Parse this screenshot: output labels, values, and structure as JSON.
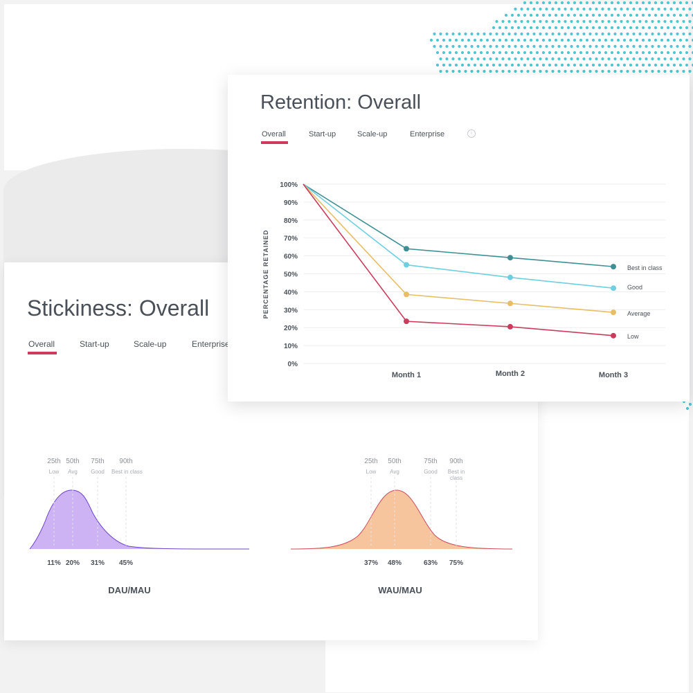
{
  "stickiness": {
    "title": "Stickiness: Overall",
    "tabs": [
      {
        "label": "Overall",
        "active": true
      },
      {
        "label": "Start-up",
        "active": false
      },
      {
        "label": "Scale-up",
        "active": false
      },
      {
        "label": "Enterprise",
        "active": false
      }
    ]
  },
  "retention": {
    "title": "Retention: Overall",
    "tabs": [
      {
        "label": "Overall",
        "active": true
      },
      {
        "label": "Start-up",
        "active": false
      },
      {
        "label": "Scale-up",
        "active": false
      },
      {
        "label": "Enterprise",
        "active": false
      }
    ],
    "info_icon": "info-icon"
  },
  "colors": {
    "accent": "#cc3b5b",
    "best": "#3e8f94",
    "good": "#6dcfdf",
    "average": "#e8bd64",
    "low": "#cc3b5b",
    "dau_fill": "#cdb3f3",
    "dau_stroke": "#6a43c9",
    "wau_fill": "#f6c49d",
    "wau_stroke": "#cf4a5c",
    "dots": "#4fc6d2"
  },
  "chart_data": [
    {
      "type": "line",
      "title": "Retention: Overall",
      "ylabel": "PERCENTAGE RETAINED",
      "xlabel": "",
      "ylim": [
        0,
        100
      ],
      "yticks": [
        "0%",
        "10%",
        "20%",
        "30%",
        "40%",
        "50%",
        "60%",
        "70%",
        "80%",
        "90%",
        "100%"
      ],
      "categories": [
        "Month 1",
        "Month 2",
        "Month 3"
      ],
      "x": [
        0,
        1,
        2,
        3
      ],
      "grid": true,
      "series": [
        {
          "name": "Best in class",
          "values": [
            100,
            64,
            59,
            54
          ]
        },
        {
          "name": "Good",
          "values": [
            100,
            55,
            48,
            42
          ]
        },
        {
          "name": "Average",
          "values": [
            100,
            38.5,
            33.5,
            28.5
          ]
        },
        {
          "name": "Low",
          "values": [
            100,
            23.5,
            20.5,
            15.5
          ]
        }
      ]
    },
    {
      "type": "area",
      "title": "",
      "xlabel": "DAU/MAU",
      "ylabel": "",
      "percentiles": [
        {
          "label": "25th",
          "name": "Low",
          "value": "11%"
        },
        {
          "label": "50th",
          "name": "Avg",
          "value": "20%"
        },
        {
          "label": "75th",
          "name": "Good",
          "value": "31%"
        },
        {
          "label": "90th",
          "name": "Best in class",
          "value": "45%"
        }
      ]
    },
    {
      "type": "area",
      "title": "",
      "xlabel": "WAU/MAU",
      "ylabel": "",
      "percentiles": [
        {
          "label": "25th",
          "name": "Low",
          "value": "37%"
        },
        {
          "label": "50th",
          "name": "Avg",
          "value": "48%"
        },
        {
          "label": "75th",
          "name": "Good",
          "value": "63%"
        },
        {
          "label": "90th",
          "name": "Best in class",
          "value": "75%"
        }
      ]
    }
  ]
}
